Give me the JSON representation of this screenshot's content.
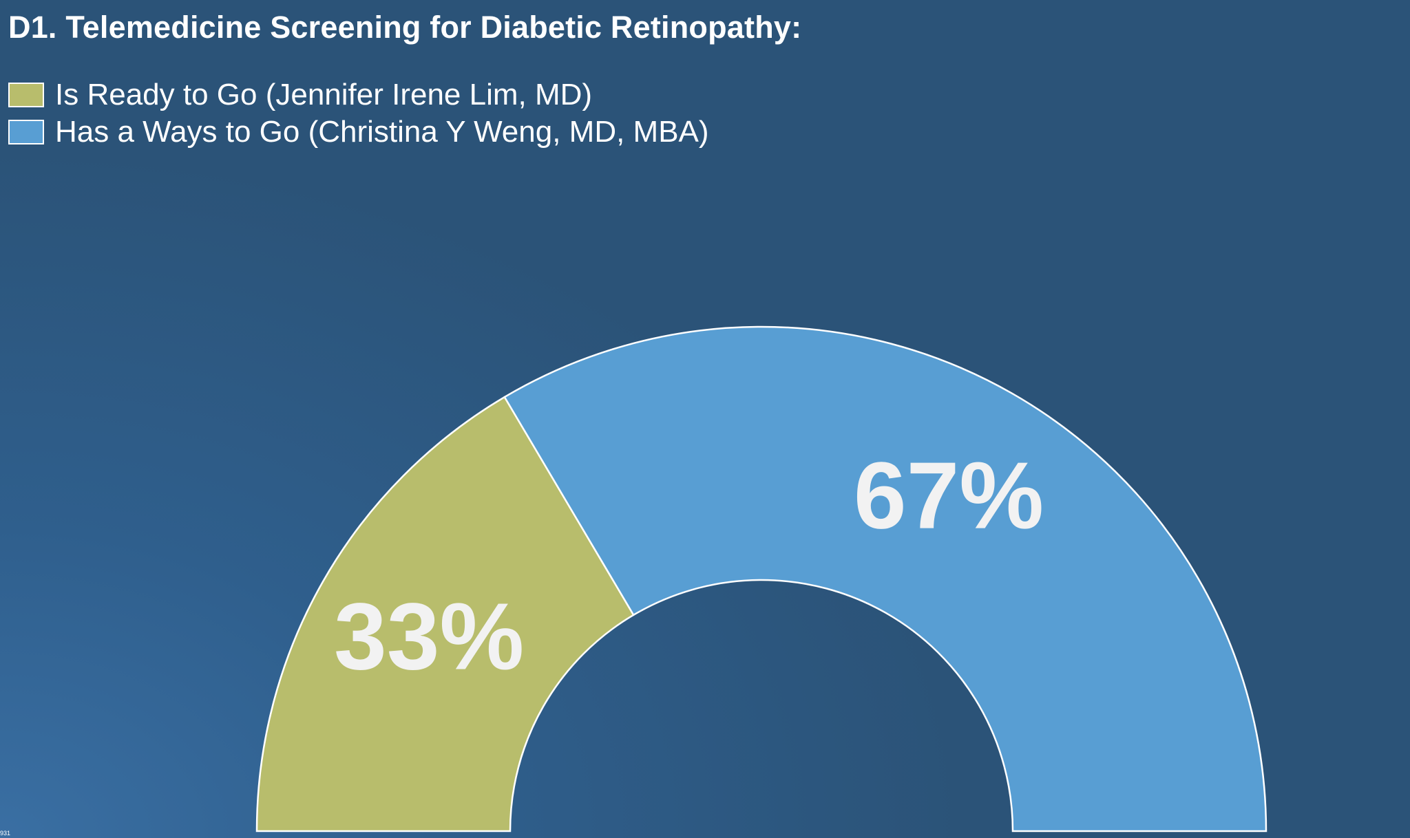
{
  "chart_data": {
    "type": "pie",
    "variant": "half-donut",
    "title": "D1. Telemedicine Screening for Diabetic Retinopathy:",
    "series": [
      {
        "name": "Is Ready to Go (Jennifer Irene Lim, MD)",
        "value": 33,
        "label": "33%",
        "color": "#b8bd6c"
      },
      {
        "name": "Has a Ways to Go (Christina Y Weng, MD, MBA)",
        "value": 67,
        "label": "67%",
        "color": "#589ed3"
      }
    ],
    "legend_position": "top-left"
  },
  "corner_text": "931"
}
